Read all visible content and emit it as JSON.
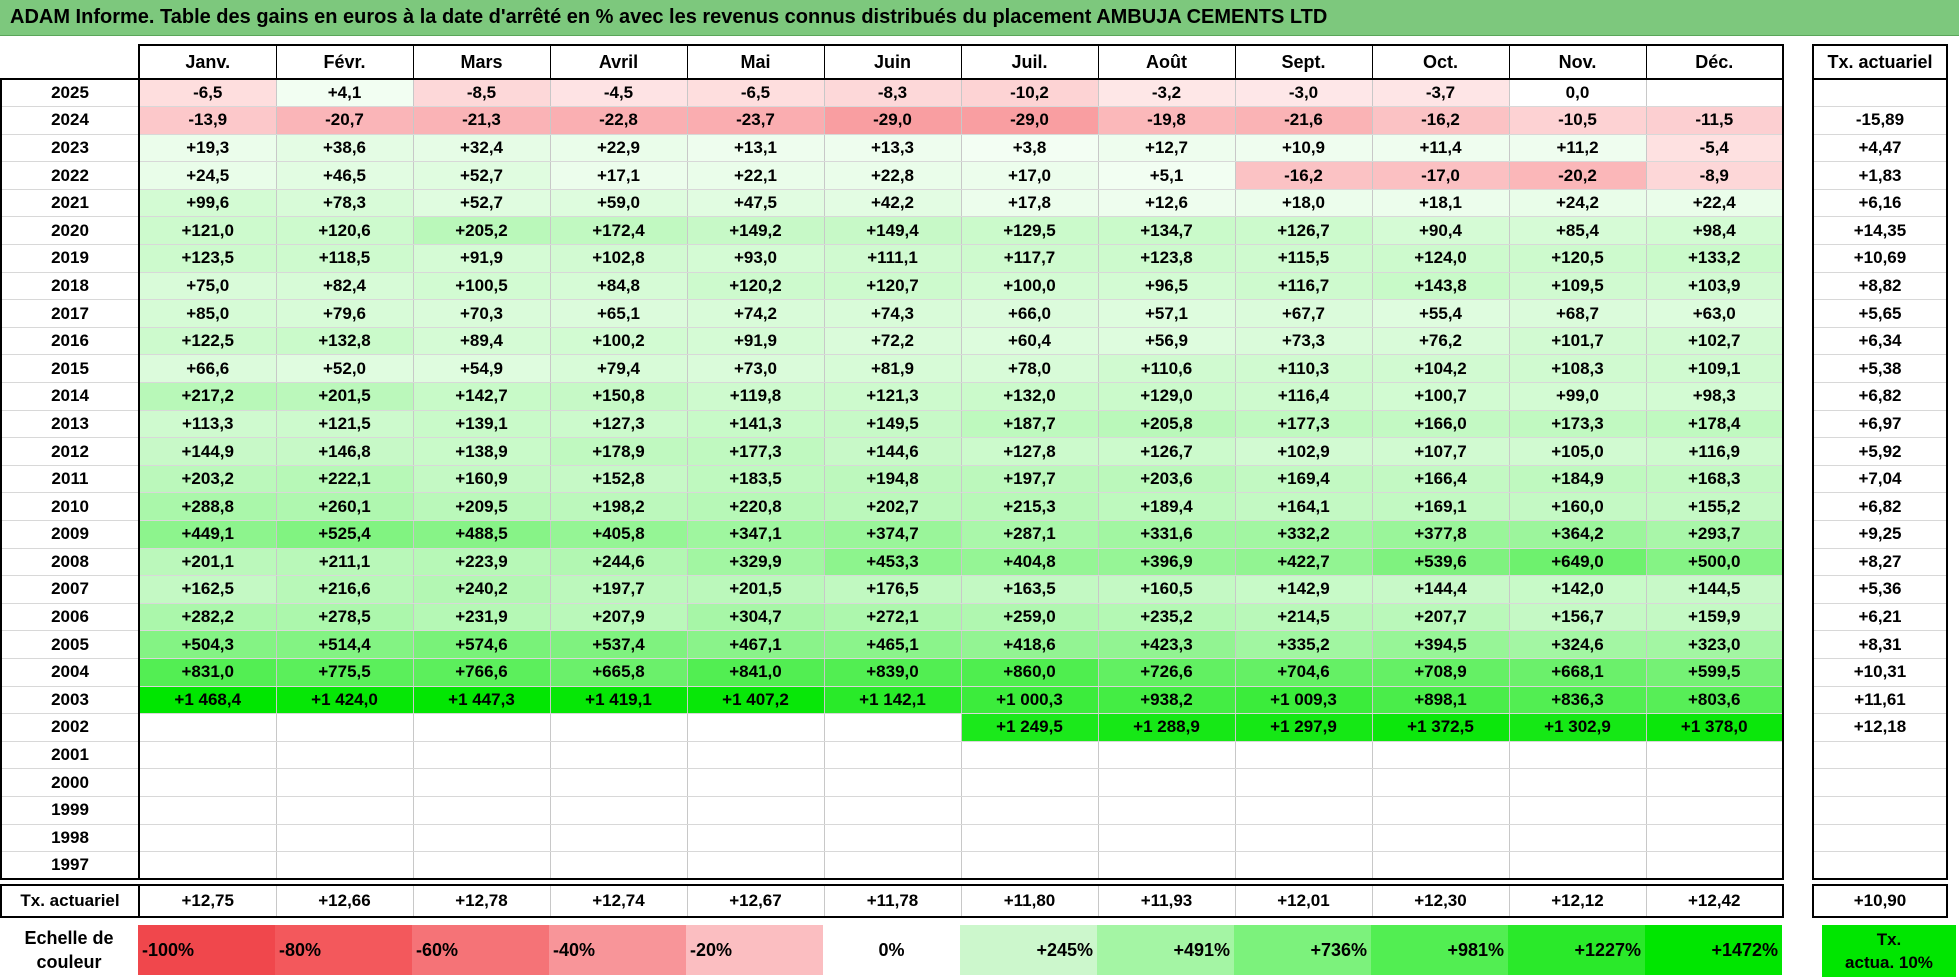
{
  "title": "ADAM Informe. Table des gains en euros à la date d'arrêté en % avec les revenus connus distribués du placement AMBUJA CEMENTS LTD",
  "months": [
    "Janv.",
    "Févr.",
    "Mars",
    "Avril",
    "Mai",
    "Juin",
    "Juil.",
    "Août",
    "Sept.",
    "Oct.",
    "Nov.",
    "Déc."
  ],
  "act_header": "Tx. actuariel",
  "rows": [
    {
      "year": "2025",
      "cells": [
        "-6,5",
        "+4,1",
        "-8,5",
        "-4,5",
        "-6,5",
        "-8,3",
        "-10,2",
        "-3,2",
        "-3,0",
        "-3,7",
        "0,0",
        ""
      ],
      "act": ""
    },
    {
      "year": "2024",
      "cells": [
        "-13,9",
        "-20,7",
        "-21,3",
        "-22,8",
        "-23,7",
        "-29,0",
        "-29,0",
        "-19,8",
        "-21,6",
        "-16,2",
        "-10,5",
        "-11,5"
      ],
      "act": "-15,89"
    },
    {
      "year": "2023",
      "cells": [
        "+19,3",
        "+38,6",
        "+32,4",
        "+22,9",
        "+13,1",
        "+13,3",
        "+3,8",
        "+12,7",
        "+10,9",
        "+11,4",
        "+11,2",
        "-5,4"
      ],
      "act": "+4,47"
    },
    {
      "year": "2022",
      "cells": [
        "+24,5",
        "+46,5",
        "+52,7",
        "+17,1",
        "+22,1",
        "+22,8",
        "+17,0",
        "+5,1",
        "-16,2",
        "-17,0",
        "-20,2",
        "-8,9"
      ],
      "act": "+1,83"
    },
    {
      "year": "2021",
      "cells": [
        "+99,6",
        "+78,3",
        "+52,7",
        "+59,0",
        "+47,5",
        "+42,2",
        "+17,8",
        "+12,6",
        "+18,0",
        "+18,1",
        "+24,2",
        "+22,4"
      ],
      "act": "+6,16"
    },
    {
      "year": "2020",
      "cells": [
        "+121,0",
        "+120,6",
        "+205,2",
        "+172,4",
        "+149,2",
        "+149,4",
        "+129,5",
        "+134,7",
        "+126,7",
        "+90,4",
        "+85,4",
        "+98,4"
      ],
      "act": "+14,35"
    },
    {
      "year": "2019",
      "cells": [
        "+123,5",
        "+118,5",
        "+91,9",
        "+102,8",
        "+93,0",
        "+111,1",
        "+117,7",
        "+123,8",
        "+115,5",
        "+124,0",
        "+120,5",
        "+133,2"
      ],
      "act": "+10,69"
    },
    {
      "year": "2018",
      "cells": [
        "+75,0",
        "+82,4",
        "+100,5",
        "+84,8",
        "+120,2",
        "+120,7",
        "+100,0",
        "+96,5",
        "+116,7",
        "+143,8",
        "+109,5",
        "+103,9"
      ],
      "act": "+8,82"
    },
    {
      "year": "2017",
      "cells": [
        "+85,0",
        "+79,6",
        "+70,3",
        "+65,1",
        "+74,2",
        "+74,3",
        "+66,0",
        "+57,1",
        "+67,7",
        "+55,4",
        "+68,7",
        "+63,0"
      ],
      "act": "+5,65"
    },
    {
      "year": "2016",
      "cells": [
        "+122,5",
        "+132,8",
        "+89,4",
        "+100,2",
        "+91,9",
        "+72,2",
        "+60,4",
        "+56,9",
        "+73,3",
        "+76,2",
        "+101,7",
        "+102,7"
      ],
      "act": "+6,34"
    },
    {
      "year": "2015",
      "cells": [
        "+66,6",
        "+52,0",
        "+54,9",
        "+79,4",
        "+73,0",
        "+81,9",
        "+78,0",
        "+110,6",
        "+110,3",
        "+104,2",
        "+108,3",
        "+109,1"
      ],
      "act": "+5,38"
    },
    {
      "year": "2014",
      "cells": [
        "+217,2",
        "+201,5",
        "+142,7",
        "+150,8",
        "+119,8",
        "+121,3",
        "+132,0",
        "+129,0",
        "+116,4",
        "+100,7",
        "+99,0",
        "+98,3"
      ],
      "act": "+6,82"
    },
    {
      "year": "2013",
      "cells": [
        "+113,3",
        "+121,5",
        "+139,1",
        "+127,3",
        "+141,3",
        "+149,5",
        "+187,7",
        "+205,8",
        "+177,3",
        "+166,0",
        "+173,3",
        "+178,4"
      ],
      "act": "+6,97"
    },
    {
      "year": "2012",
      "cells": [
        "+144,9",
        "+146,8",
        "+138,9",
        "+178,9",
        "+177,3",
        "+144,6",
        "+127,8",
        "+126,7",
        "+102,9",
        "+107,7",
        "+105,0",
        "+116,9"
      ],
      "act": "+5,92"
    },
    {
      "year": "2011",
      "cells": [
        "+203,2",
        "+222,1",
        "+160,9",
        "+152,8",
        "+183,5",
        "+194,8",
        "+197,7",
        "+203,6",
        "+169,4",
        "+166,4",
        "+184,9",
        "+168,3"
      ],
      "act": "+7,04"
    },
    {
      "year": "2010",
      "cells": [
        "+288,8",
        "+260,1",
        "+209,5",
        "+198,2",
        "+220,8",
        "+202,7",
        "+215,3",
        "+189,4",
        "+164,1",
        "+169,1",
        "+160,0",
        "+155,2"
      ],
      "act": "+6,82"
    },
    {
      "year": "2009",
      "cells": [
        "+449,1",
        "+525,4",
        "+488,5",
        "+405,8",
        "+347,1",
        "+374,7",
        "+287,1",
        "+331,6",
        "+332,2",
        "+377,8",
        "+364,2",
        "+293,7"
      ],
      "act": "+9,25"
    },
    {
      "year": "2008",
      "cells": [
        "+201,1",
        "+211,1",
        "+223,9",
        "+244,6",
        "+329,9",
        "+453,3",
        "+404,8",
        "+396,9",
        "+422,7",
        "+539,6",
        "+649,0",
        "+500,0"
      ],
      "act": "+8,27"
    },
    {
      "year": "2007",
      "cells": [
        "+162,5",
        "+216,6",
        "+240,2",
        "+197,7",
        "+201,5",
        "+176,5",
        "+163,5",
        "+160,5",
        "+142,9",
        "+144,4",
        "+142,0",
        "+144,5"
      ],
      "act": "+5,36"
    },
    {
      "year": "2006",
      "cells": [
        "+282,2",
        "+278,5",
        "+231,9",
        "+207,9",
        "+304,7",
        "+272,1",
        "+259,0",
        "+235,2",
        "+214,5",
        "+207,7",
        "+156,7",
        "+159,9"
      ],
      "act": "+6,21"
    },
    {
      "year": "2005",
      "cells": [
        "+504,3",
        "+514,4",
        "+574,6",
        "+537,4",
        "+467,1",
        "+465,1",
        "+418,6",
        "+423,3",
        "+335,2",
        "+394,5",
        "+324,6",
        "+323,0"
      ],
      "act": "+8,31"
    },
    {
      "year": "2004",
      "cells": [
        "+831,0",
        "+775,5",
        "+766,6",
        "+665,8",
        "+841,0",
        "+839,0",
        "+860,0",
        "+726,6",
        "+704,6",
        "+708,9",
        "+668,1",
        "+599,5"
      ],
      "act": "+10,31"
    },
    {
      "year": "2003",
      "cells": [
        "+1 468,4",
        "+1 424,0",
        "+1 447,3",
        "+1 419,1",
        "+1 407,2",
        "+1 142,1",
        "+1 000,3",
        "+938,2",
        "+1 009,3",
        "+898,1",
        "+836,3",
        "+803,6"
      ],
      "act": "+11,61"
    },
    {
      "year": "2002",
      "cells": [
        "",
        "",
        "",
        "",
        "",
        "",
        "+1 249,5",
        "+1 288,9",
        "+1 297,9",
        "+1 372,5",
        "+1 302,9",
        "+1 378,0"
      ],
      "act": "+12,18"
    },
    {
      "year": "2001",
      "cells": [
        "",
        "",
        "",
        "",
        "",
        "",
        "",
        "",
        "",
        "",
        "",
        ""
      ],
      "act": ""
    },
    {
      "year": "2000",
      "cells": [
        "",
        "",
        "",
        "",
        "",
        "",
        "",
        "",
        "",
        "",
        "",
        ""
      ],
      "act": ""
    },
    {
      "year": "1999",
      "cells": [
        "",
        "",
        "",
        "",
        "",
        "",
        "",
        "",
        "",
        "",
        "",
        ""
      ],
      "act": ""
    },
    {
      "year": "1998",
      "cells": [
        "",
        "",
        "",
        "",
        "",
        "",
        "",
        "",
        "",
        "",
        "",
        ""
      ],
      "act": ""
    },
    {
      "year": "1997",
      "cells": [
        "",
        "",
        "",
        "",
        "",
        "",
        "",
        "",
        "",
        "",
        "",
        ""
      ],
      "act": ""
    }
  ],
  "totals": {
    "label": "Tx. actuariel",
    "values": [
      "+12,75",
      "+12,66",
      "+12,78",
      "+12,74",
      "+12,67",
      "+11,78",
      "+11,80",
      "+11,93",
      "+12,01",
      "+12,30",
      "+12,12",
      "+12,42"
    ],
    "act": "+10,90"
  },
  "legend": {
    "label_line1": "Echelle de",
    "label_line2": "couleur",
    "swatches": [
      {
        "label": "-100%",
        "color": "#f0474c",
        "align": "left"
      },
      {
        "label": "-80%",
        "color": "#f3585c",
        "align": "left"
      },
      {
        "label": "-60%",
        "color": "#f57377",
        "align": "left"
      },
      {
        "label": "-40%",
        "color": "#f89599",
        "align": "left"
      },
      {
        "label": "-20%",
        "color": "#fbbec1",
        "align": "left"
      },
      {
        "label": "0%",
        "color": "#ffffff",
        "align": "center"
      },
      {
        "label": "+245%",
        "color": "#ccf7cc",
        "align": "right"
      },
      {
        "label": "+491%",
        "color": "#a4f5a4",
        "align": "right"
      },
      {
        "label": "+736%",
        "color": "#7cf27c",
        "align": "right"
      },
      {
        "label": "+981%",
        "color": "#52ee52",
        "align": "right"
      },
      {
        "label": "+1227%",
        "color": "#2ae92a",
        "align": "right"
      },
      {
        "label": "+1472%",
        "color": "#00e600",
        "align": "right"
      }
    ],
    "act_line1": "Tx.",
    "act_line2": "actua. 10%",
    "act_color": "#00e600"
  }
}
